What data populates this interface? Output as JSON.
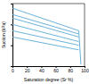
{
  "chart_data": {
    "type": "line",
    "x_label": "Saturation degree (Sr %)",
    "y_label": "Suction (kPa)",
    "x": [
      0,
      92,
      95
    ],
    "series": [
      {
        "values": [
          600,
          50,
          1.2
        ]
      },
      {
        "values": [
          300,
          35,
          null
        ]
      },
      {
        "values": [
          200,
          25,
          null
        ]
      },
      {
        "values": [
          100,
          15,
          null
        ]
      },
      {
        "values": [
          50,
          10,
          null
        ]
      },
      {
        "values": [
          25,
          6,
          null
        ]
      }
    ],
    "color": "#5aa9d6",
    "xlim": [
      0,
      100
    ],
    "xticks": [
      0,
      20,
      40,
      60,
      80,
      100
    ],
    "ylim": [
      1,
      1000
    ],
    "yticks": [
      1,
      10,
      100,
      1000
    ],
    "log": "y",
    "grid": false,
    "tick_labels": "x"
  }
}
